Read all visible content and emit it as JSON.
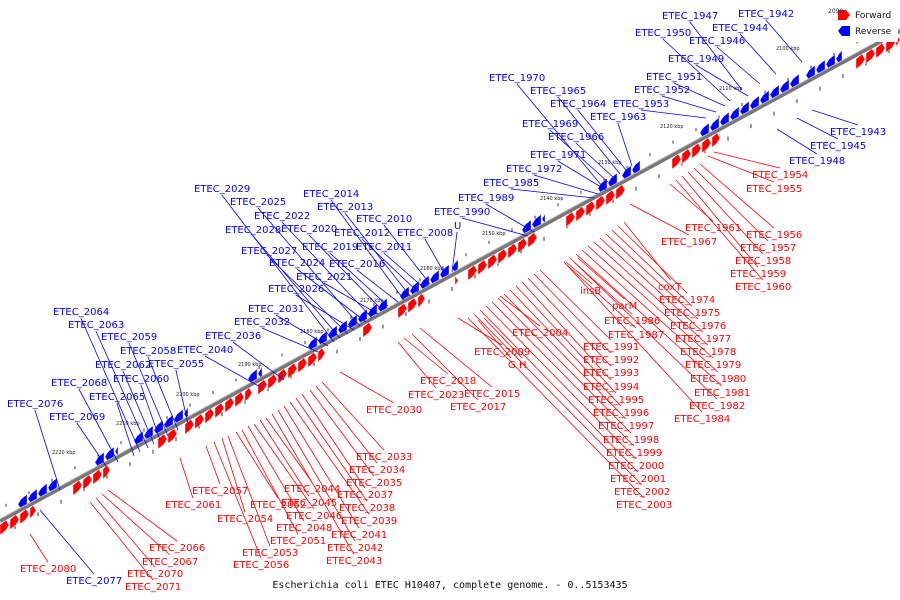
{
  "caption": "Escherichia coli ETEC H10407, complete genome. - 0..5153435",
  "legend": {
    "forward_label": "Forward",
    "reverse_label": "Reverse",
    "forward_color": "#ff0000",
    "reverse_color": "#0000ff"
  },
  "tick_labels": [
    "2100 kbp",
    "2110 kbp",
    "2120 kbp",
    "2130 kbp",
    "2140 kbp",
    "2150 kbp",
    "2160 kbp",
    "2170 kbp",
    "2180 kbp",
    "2190 kbp",
    "2200 kbp",
    "2210 kbp",
    "2220 kbp"
  ],
  "reverse_genes": [
    "ETEC_1942",
    "ETEC_1943",
    "ETEC_1944",
    "ETEC_1945",
    "ETEC_1946",
    "ETEC_1947",
    "ETEC_1948",
    "ETEC_1949",
    "ETEC_1950",
    "ETEC_1951",
    "ETEC_1952",
    "ETEC_1953",
    "ETEC_1963",
    "ETEC_1964",
    "ETEC_1965",
    "ETEC_1966",
    "ETEC_1969",
    "ETEC_1970",
    "ETEC_1971",
    "ETEC_1972",
    "ETEC_1985",
    "ETEC_1989",
    "ETEC_1990",
    "U",
    "ETEC_2008",
    "ETEC_2010",
    "ETEC_2011",
    "ETEC_2012",
    "ETEC_2013",
    "ETEC_2014",
    "ETEC_2016",
    "ETEC_2019",
    "ETEC_2020",
    "ETEC_2021",
    "ETEC_2022",
    "ETEC_2024",
    "ETEC_2025",
    "ETEC_2026",
    "ETEC_2027",
    "ETEC_2028",
    "ETEC_2029",
    "ETEC_2031",
    "ETEC_2032",
    "ETEC_2036",
    "ETEC_2040",
    "ETEC_2055",
    "ETEC_2058",
    "ETEC_2059",
    "ETEC_2060",
    "ETEC_2062",
    "ETEC_2063",
    "ETEC_2064",
    "ETEC_2065",
    "ETEC_2068",
    "ETEC_2069",
    "ETEC_2076",
    "ETEC_2077"
  ],
  "forward_genes": [
    "ETEC_1954",
    "ETEC_1955",
    "ETEC_1956",
    "ETEC_1957",
    "ETEC_1958",
    "ETEC_1959",
    "ETEC_1960",
    "ETEC_1961",
    "ETEC_1967",
    "coxT",
    "ETEC_1974",
    "ETEC_1975",
    "ETEC_1976",
    "ETEC_1977",
    "ETEC_1978",
    "ETEC_1979",
    "ETEC_1980",
    "ETEC_1981",
    "ETEC_1982",
    "ETEC_1984",
    "insB",
    "parM",
    "ETEC_1986",
    "ETEC_1987",
    "ETEC_1991",
    "ETEC_1992",
    "ETEC_1993",
    "ETEC_1994",
    "ETEC_1995",
    "ETEC_1996",
    "ETEC_1997",
    "ETEC_1998",
    "ETEC_1999",
    "ETEC_2000",
    "ETEC_2001",
    "ETEC_2002",
    "ETEC_2003",
    "ETEC_2004",
    "ETEC_2009",
    "G",
    "H",
    "ETEC_2015",
    "ETEC_2017",
    "ETEC_2018",
    "ETEC_2023",
    "ETEC_2030",
    "ETEC_2033",
    "ETEC_2034",
    "ETEC_2035",
    "ETEC_2037",
    "ETEC_2038",
    "ETEC_2039",
    "ETEC_2041",
    "ETEC_2042",
    "ETEC_2043",
    "ETEC_2044",
    "ETEC_2045",
    "ETEC_2046",
    "ETEC_2048",
    "ETEC_2051",
    "ETEC_2052",
    "ETEC_2053",
    "ETEC_2054",
    "ETEC_2056",
    "ETEC_2057",
    "ETEC_2061",
    "ETEC_2066",
    "ETEC_2067",
    "ETEC_2070",
    "ETEC_2071",
    "ETEC_2080"
  ]
}
